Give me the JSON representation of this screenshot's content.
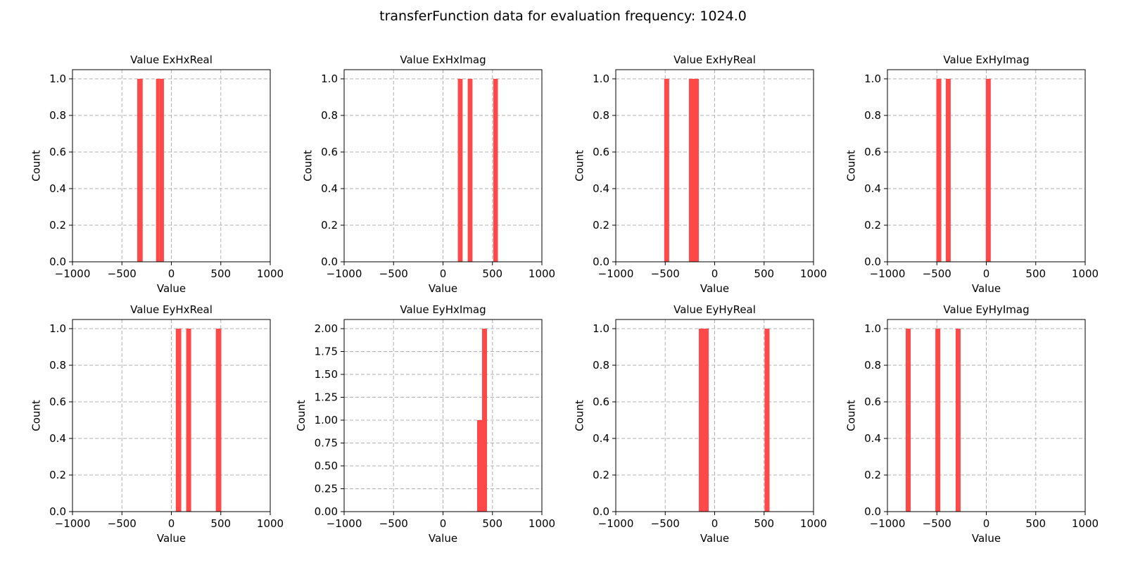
{
  "suptitle": "transferFunction data for evaluation frequency: 1024.0",
  "colors": {
    "bar": "#ff4444",
    "grid": "#b0b0b0",
    "axis": "#000000"
  },
  "chart_data": [
    {
      "type": "bar",
      "title": "Value ExHxReal",
      "xlabel": "Value",
      "ylabel": "Count",
      "xlim": [
        -1000,
        1000
      ],
      "ylim": [
        0,
        1.05
      ],
      "xticks": [
        "−1000",
        "−500",
        "0",
        "500",
        "1000"
      ],
      "yticks": [
        "0.0",
        "0.2",
        "0.4",
        "0.6",
        "0.8",
        "1.0"
      ],
      "grid": true,
      "bars": [
        {
          "x0": -345,
          "x1": -290,
          "count": 1
        },
        {
          "x0": -155,
          "x1": -120,
          "count": 1
        },
        {
          "x0": -120,
          "x1": -75,
          "count": 1
        }
      ]
    },
    {
      "type": "bar",
      "title": "Value ExHxImag",
      "xlabel": "Value",
      "ylabel": "Count",
      "xlim": [
        -1000,
        1000
      ],
      "ylim": [
        0,
        1.05
      ],
      "xticks": [
        "−1000",
        "−500",
        "0",
        "500",
        "1000"
      ],
      "yticks": [
        "0.0",
        "0.2",
        "0.4",
        "0.6",
        "0.8",
        "1.0"
      ],
      "grid": true,
      "bars": [
        {
          "x0": 150,
          "x1": 198,
          "count": 1
        },
        {
          "x0": 250,
          "x1": 298,
          "count": 1
        },
        {
          "x0": 508,
          "x1": 555,
          "count": 1
        }
      ]
    },
    {
      "type": "bar",
      "title": "Value ExHyReal",
      "xlabel": "Value",
      "ylabel": "Count",
      "xlim": [
        -1000,
        1000
      ],
      "ylim": [
        0,
        1.05
      ],
      "xticks": [
        "−1000",
        "−500",
        "0",
        "500",
        "1000"
      ],
      "yticks": [
        "0.0",
        "0.2",
        "0.4",
        "0.6",
        "0.8",
        "1.0"
      ],
      "grid": true,
      "bars": [
        {
          "x0": -510,
          "x1": -460,
          "count": 1
        },
        {
          "x0": -260,
          "x1": -210,
          "count": 1
        },
        {
          "x0": -210,
          "x1": -160,
          "count": 1
        }
      ]
    },
    {
      "type": "bar",
      "title": "Value ExHyImag",
      "xlabel": "Value",
      "ylabel": "Count",
      "xlim": [
        -1000,
        1000
      ],
      "ylim": [
        0,
        1.05
      ],
      "xticks": [
        "−1000",
        "−500",
        "0",
        "500",
        "1000"
      ],
      "yticks": [
        "0.0",
        "0.2",
        "0.4",
        "0.6",
        "0.8",
        "1.0"
      ],
      "grid": true,
      "bars": [
        {
          "x0": -505,
          "x1": -455,
          "count": 1
        },
        {
          "x0": -410,
          "x1": -360,
          "count": 1
        },
        {
          "x0": -5,
          "x1": 45,
          "count": 1
        }
      ]
    },
    {
      "type": "bar",
      "title": "Value EyHxReal",
      "xlabel": "Value",
      "ylabel": "Count",
      "xlim": [
        -1000,
        1000
      ],
      "ylim": [
        0,
        1.05
      ],
      "xticks": [
        "−1000",
        "−500",
        "0",
        "500",
        "1000"
      ],
      "yticks": [
        "0.0",
        "0.2",
        "0.4",
        "0.6",
        "0.8",
        "1.0"
      ],
      "grid": true,
      "bars": [
        {
          "x0": 45,
          "x1": 100,
          "count": 1
        },
        {
          "x0": 150,
          "x1": 200,
          "count": 1
        },
        {
          "x0": 450,
          "x1": 505,
          "count": 1
        }
      ]
    },
    {
      "type": "bar",
      "title": "Value EyHxImag",
      "xlabel": "Value",
      "ylabel": "Count",
      "xlim": [
        -1000,
        1000
      ],
      "ylim": [
        0,
        2.1
      ],
      "xticks": [
        "−1000",
        "−500",
        "0",
        "500",
        "1000"
      ],
      "yticks": [
        "0.00",
        "0.25",
        "0.50",
        "0.75",
        "1.00",
        "1.25",
        "1.50",
        "1.75",
        "2.00"
      ],
      "grid": true,
      "bars": [
        {
          "x0": 345,
          "x1": 395,
          "count": 1
        },
        {
          "x0": 395,
          "x1": 445,
          "count": 2
        }
      ]
    },
    {
      "type": "bar",
      "title": "Value EyHyReal",
      "xlabel": "Value",
      "ylabel": "Count",
      "xlim": [
        -1000,
        1000
      ],
      "ylim": [
        0,
        1.05
      ],
      "xticks": [
        "−1000",
        "−500",
        "0",
        "500",
        "1000"
      ],
      "yticks": [
        "0.0",
        "0.2",
        "0.4",
        "0.6",
        "0.8",
        "1.0"
      ],
      "grid": true,
      "bars": [
        {
          "x0": -160,
          "x1": -110,
          "count": 1
        },
        {
          "x0": -110,
          "x1": -60,
          "count": 1
        },
        {
          "x0": 505,
          "x1": 555,
          "count": 1
        }
      ]
    },
    {
      "type": "bar",
      "title": "Value EyHyImag",
      "xlabel": "Value",
      "ylabel": "Count",
      "xlim": [
        -1000,
        1000
      ],
      "ylim": [
        0,
        1.05
      ],
      "xticks": [
        "−1000",
        "−500",
        "0",
        "500",
        "1000"
      ],
      "yticks": [
        "0.0",
        "0.2",
        "0.4",
        "0.6",
        "0.8",
        "1.0"
      ],
      "grid": true,
      "bars": [
        {
          "x0": -815,
          "x1": -765,
          "count": 1
        },
        {
          "x0": -515,
          "x1": -465,
          "count": 1
        },
        {
          "x0": -310,
          "x1": -260,
          "count": 1
        }
      ]
    }
  ]
}
